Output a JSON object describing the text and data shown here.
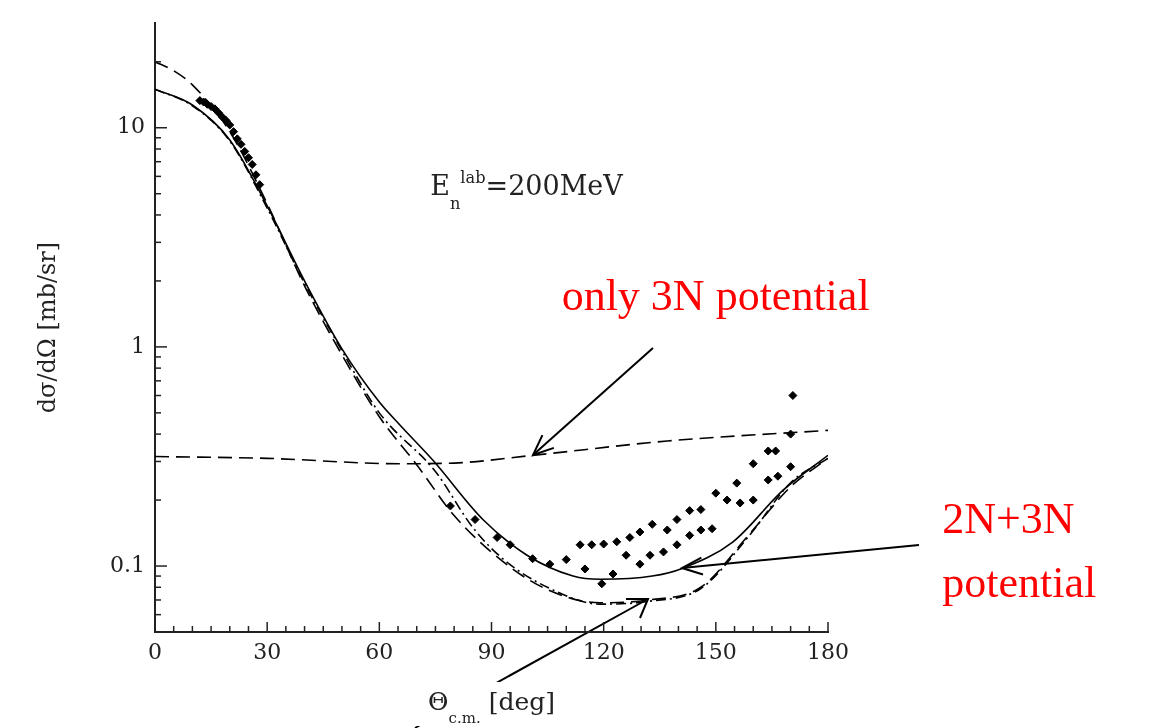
{
  "chart_data": {
    "type": "line",
    "xlabel": "Θ$_{c.m.}$ [deg]",
    "ylabel": "dσ/dΩ [mb/sr]",
    "log": "y",
    "grid": false,
    "legend": false,
    "xlim": [
      0,
      180
    ],
    "ylim": [
      0.05,
      30
    ],
    "xticks": [
      0,
      {
        "value": 5,
        "label": null
      },
      {
        "value": 10,
        "label": null
      },
      {
        "value": 15,
        "label": null
      },
      {
        "value": 20,
        "label": null
      },
      {
        "value": 25,
        "label": null
      },
      30,
      {
        "value": 35,
        "label": null
      },
      {
        "value": 40,
        "label": null
      },
      {
        "value": 45,
        "label": null
      },
      {
        "value": 50,
        "label": null
      },
      {
        "value": 55,
        "label": null
      },
      60,
      {
        "value": 65,
        "label": null
      },
      {
        "value": 70,
        "label": null
      },
      {
        "value": 75,
        "label": null
      },
      {
        "value": 80,
        "label": null
      },
      {
        "value": 85,
        "label": null
      },
      90,
      {
        "value": 95,
        "label": null
      },
      {
        "value": 100,
        "label": null
      },
      {
        "value": 105,
        "label": null
      },
      {
        "value": 110,
        "label": null
      },
      {
        "value": 115,
        "label": null
      },
      120,
      {
        "value": 125,
        "label": null
      },
      {
        "value": 130,
        "label": null
      },
      {
        "value": 135,
        "label": null
      },
      {
        "value": 140,
        "label": null
      },
      {
        "value": 145,
        "label": null
      },
      150,
      {
        "value": 155,
        "label": null
      },
      {
        "value": 160,
        "label": null
      },
      {
        "value": 165,
        "label": null
      },
      {
        "value": 170,
        "label": null
      },
      {
        "value": 175,
        "label": null
      },
      180
    ],
    "yticks": [
      {
        "value": 0.06,
        "label": null
      },
      {
        "value": 0.07,
        "label": null
      },
      {
        "value": 0.08,
        "label": null
      },
      {
        "value": 0.09,
        "label": null
      },
      0.1,
      {
        "value": 0.2,
        "label": null
      },
      {
        "value": 0.3,
        "label": null
      },
      {
        "value": 0.4,
        "label": null
      },
      {
        "value": 0.5,
        "label": null
      },
      {
        "value": 0.6,
        "label": null
      },
      {
        "value": 0.7,
        "label": null
      },
      {
        "value": 0.8,
        "label": null
      },
      {
        "value": 0.9,
        "label": null
      },
      1,
      {
        "value": 2,
        "label": null
      },
      {
        "value": 3,
        "label": null
      },
      {
        "value": 4,
        "label": null
      },
      {
        "value": 5,
        "label": null
      },
      {
        "value": 6,
        "label": null
      },
      {
        "value": 7,
        "label": null
      },
      {
        "value": 8,
        "label": null
      },
      {
        "value": 9,
        "label": null
      },
      10,
      {
        "value": 20,
        "label": null
      }
    ],
    "series": [
      {
        "color": "#000000",
        "line_style": "solid",
        "marker": "none",
        "x": [
          0,
          10,
          20,
          30,
          40,
          50,
          60,
          65.5,
          74.4,
          87.7,
          99.5,
          111.8,
          119,
          133,
          141,
          154.6,
          168,
          180
        ],
        "values": [
          15,
          12.7,
          8.8,
          4.4,
          2.0,
          0.98,
          0.56,
          0.44,
          0.303,
          0.163,
          0.112,
          0.09,
          0.087,
          0.09,
          0.0975,
          0.129,
          0.222,
          0.32
        ]
      },
      {
        "color": "#000000",
        "line_style": "dashed",
        "marker": "none",
        "x": [
          0,
          5,
          10,
          20,
          30,
          40,
          50,
          60,
          70,
          80,
          93,
          105,
          119,
          132,
          146,
          159,
          170,
          180
        ],
        "values": [
          20,
          18.2,
          15.7,
          9.6,
          4.5,
          1.9,
          0.92,
          0.48,
          0.29,
          0.17,
          0.105,
          0.078,
          0.068,
          0.07,
          0.08,
          0.14,
          0.23,
          0.31
        ]
      },
      {
        "color": "#000000",
        "line_style": "dotted",
        "marker": "none",
        "x": [
          0,
          10,
          20,
          30,
          40,
          50,
          60,
          75,
          85,
          93,
          105.6,
          119,
          132,
          146,
          159,
          170,
          180
        ],
        "values": [
          15,
          12.6,
          8.7,
          4.3,
          1.95,
          0.96,
          0.5,
          0.27,
          0.15,
          0.108,
          0.079,
          0.067,
          0.069,
          0.079,
          0.138,
          0.24,
          0.31
        ]
      },
      {
        "color": "#000000",
        "line_style": "dashed",
        "marker": "none",
        "x": [
          0,
          30,
          65.5,
          80,
          101,
          137,
          180
        ],
        "values": [
          0.316,
          0.31,
          0.293,
          0.295,
          0.32,
          0.372,
          0.416
        ]
      },
      {
        "type": "scatter",
        "color": "#000000",
        "marker": "diamond",
        "x": [
          12,
          13,
          14,
          15,
          16,
          17,
          18,
          19,
          20,
          21,
          22,
          23,
          24,
          25,
          26,
          27,
          28,
          79,
          85.6,
          91.5,
          95,
          101,
          105.6,
          110,
          113.7,
          116.8,
          120,
          123.5,
          127,
          129.7,
          133,
          137,
          139.6,
          143,
          146,
          150,
          153,
          155.6,
          160,
          164,
          166,
          170.6,
          170,
          115,
          119.5,
          122.5,
          126,
          129.7,
          132.4,
          136,
          139.6,
          143,
          146,
          149,
          156.5,
          160,
          164,
          166.6,
          170
        ],
        "values": [
          13.3,
          13.1,
          12.8,
          12.5,
          12.2,
          11.7,
          11.2,
          10.8,
          10.3,
          9.6,
          8.9,
          8.4,
          7.8,
          7.3,
          6.8,
          6.1,
          5.5,
          0.188,
          0.163,
          0.135,
          0.125,
          0.108,
          0.102,
          0.107,
          0.125,
          0.125,
          0.126,
          0.129,
          0.135,
          0.143,
          0.155,
          0.146,
          0.163,
          0.179,
          0.181,
          0.215,
          0.2,
          0.239,
          0.293,
          0.335,
          0.335,
          0.6,
          0.4,
          0.097,
          0.083,
          0.092,
          0.112,
          0.102,
          0.112,
          0.116,
          0.125,
          0.138,
          0.146,
          0.148,
          0.194,
          0.2,
          0.247,
          0.257,
          0.284
        ]
      }
    ],
    "annotations": [
      "E$_{n}$$^{lab}$=200MeV",
      {
        "text": "only 3N potential",
        "x": 101,
        "y": 0.32
      },
      {
        "text": "2N+3N potential",
        "x": 141,
        "y": 0.0975
      }
    ]
  }
}
